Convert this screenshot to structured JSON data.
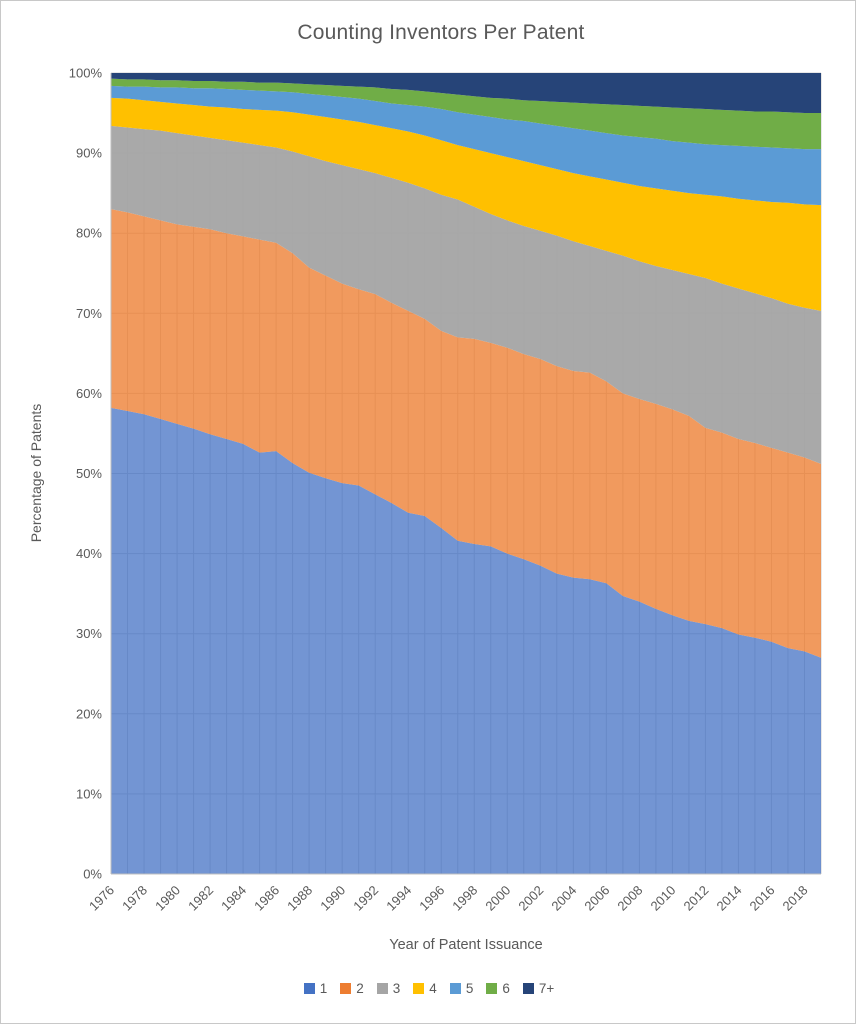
{
  "chart_data": {
    "type": "area",
    "stacked": true,
    "stack_mode": "percent",
    "title": "Counting Inventors Per Patent",
    "xlabel": "Year of Patent Issuance",
    "ylabel": "Percentage of Patents",
    "ylim": [
      0,
      100
    ],
    "grid": true,
    "legend_position": "bottom",
    "x": [
      1976,
      1977,
      1978,
      1979,
      1980,
      1981,
      1982,
      1983,
      1984,
      1985,
      1986,
      1987,
      1988,
      1989,
      1990,
      1991,
      1992,
      1993,
      1994,
      1995,
      1996,
      1997,
      1998,
      1999,
      2000,
      2001,
      2002,
      2003,
      2004,
      2005,
      2006,
      2007,
      2008,
      2009,
      2010,
      2011,
      2012,
      2013,
      2014,
      2015,
      2016,
      2017,
      2018,
      2019
    ],
    "x_tick_labels": [
      "1976",
      "1978",
      "1980",
      "1982",
      "1984",
      "1986",
      "1988",
      "1990",
      "1992",
      "1994",
      "1996",
      "1998",
      "2000",
      "2002",
      "2004",
      "2006",
      "2008",
      "2010",
      "2012",
      "2014",
      "2016",
      "2018"
    ],
    "y_tick_labels": [
      "0%",
      "10%",
      "20%",
      "30%",
      "40%",
      "50%",
      "60%",
      "70%",
      "80%",
      "90%",
      "100%"
    ],
    "series": [
      {
        "name": "1",
        "color": "#4472C4",
        "values": [
          58.2,
          57.8,
          57.4,
          56.8,
          56.2,
          55.6,
          54.9,
          54.3,
          53.7,
          52.6,
          52.8,
          51.3,
          50.1,
          49.4,
          48.8,
          48.5,
          47.4,
          46.3,
          45.1,
          44.7,
          43.2,
          41.6,
          41.2,
          40.9,
          40.0,
          39.3,
          38.5,
          37.5,
          37.0,
          36.8,
          36.3,
          34.7,
          34.0,
          33.1,
          32.3,
          31.6,
          31.2,
          30.7,
          29.9,
          29.5,
          29.0,
          28.2,
          27.8,
          27.0
        ]
      },
      {
        "name": "2",
        "color": "#ED7D31",
        "values": [
          24.8,
          24.8,
          24.7,
          24.8,
          24.9,
          25.2,
          25.6,
          25.7,
          25.9,
          26.6,
          26.0,
          26.2,
          25.6,
          25.3,
          24.9,
          24.5,
          25.0,
          25.0,
          25.2,
          24.6,
          24.6,
          25.4,
          25.6,
          25.4,
          25.7,
          25.6,
          25.8,
          25.9,
          25.8,
          25.8,
          25.2,
          25.3,
          25.3,
          25.6,
          25.7,
          25.6,
          24.5,
          24.4,
          24.4,
          24.3,
          24.2,
          24.4,
          24.2,
          24.2
        ]
      },
      {
        "name": "3",
        "color": "#A5A5A5",
        "values": [
          10.4,
          10.6,
          10.9,
          11.2,
          11.4,
          11.4,
          11.4,
          11.6,
          11.7,
          11.8,
          11.9,
          12.7,
          13.9,
          14.3,
          14.8,
          15.0,
          15.1,
          15.6,
          16.0,
          16.3,
          17.0,
          17.2,
          16.5,
          16.1,
          15.9,
          16.0,
          16.0,
          16.3,
          16.2,
          15.8,
          16.3,
          17.2,
          17.2,
          17.2,
          17.4,
          17.7,
          18.7,
          18.6,
          18.8,
          18.7,
          18.7,
          18.6,
          18.7,
          19.1
        ]
      },
      {
        "name": "4",
        "color": "#FFC000",
        "values": [
          3.5,
          3.6,
          3.6,
          3.6,
          3.7,
          3.8,
          3.9,
          4.1,
          4.2,
          4.4,
          4.6,
          4.9,
          5.2,
          5.5,
          5.7,
          5.9,
          6.0,
          6.2,
          6.4,
          6.6,
          6.8,
          6.8,
          7.2,
          7.6,
          7.9,
          8.1,
          8.2,
          8.3,
          8.5,
          8.7,
          8.9,
          9.1,
          9.4,
          9.7,
          9.9,
          10.1,
          10.4,
          10.9,
          11.2,
          11.6,
          12.0,
          12.6,
          12.9,
          13.2
        ]
      },
      {
        "name": "5",
        "color": "#5B9BD5",
        "values": [
          1.5,
          1.5,
          1.7,
          1.8,
          2.0,
          2.1,
          2.3,
          2.3,
          2.4,
          2.4,
          2.4,
          2.5,
          2.6,
          2.7,
          2.8,
          2.9,
          3.0,
          3.1,
          3.3,
          3.6,
          3.9,
          4.1,
          4.3,
          4.5,
          4.7,
          5.0,
          5.2,
          5.4,
          5.6,
          5.7,
          5.8,
          5.9,
          6.1,
          6.2,
          6.2,
          6.3,
          6.3,
          6.4,
          6.6,
          6.7,
          6.8,
          6.8,
          6.9,
          7.0
        ]
      },
      {
        "name": "6",
        "color": "#70AD47",
        "values": [
          0.9,
          0.9,
          0.9,
          0.9,
          0.9,
          0.9,
          0.9,
          0.9,
          1.0,
          1.0,
          1.1,
          1.1,
          1.2,
          1.3,
          1.4,
          1.5,
          1.7,
          1.8,
          1.9,
          1.9,
          2.0,
          2.2,
          2.3,
          2.4,
          2.6,
          2.6,
          2.8,
          3.0,
          3.2,
          3.4,
          3.6,
          3.8,
          3.9,
          4.0,
          4.2,
          4.3,
          4.4,
          4.4,
          4.4,
          4.4,
          4.5,
          4.5,
          4.5,
          4.5
        ]
      },
      {
        "name": "7+",
        "color": "#264478",
        "values": [
          0.7,
          0.8,
          0.8,
          0.9,
          0.9,
          1.0,
          1.0,
          1.1,
          1.1,
          1.2,
          1.2,
          1.3,
          1.4,
          1.5,
          1.6,
          1.7,
          1.8,
          2.0,
          2.1,
          2.3,
          2.5,
          2.7,
          2.9,
          3.1,
          3.2,
          3.4,
          3.5,
          3.6,
          3.7,
          3.8,
          3.9,
          4.0,
          4.1,
          4.2,
          4.3,
          4.4,
          4.5,
          4.6,
          4.7,
          4.8,
          4.8,
          4.9,
          5.0,
          5.0
        ]
      }
    ]
  }
}
